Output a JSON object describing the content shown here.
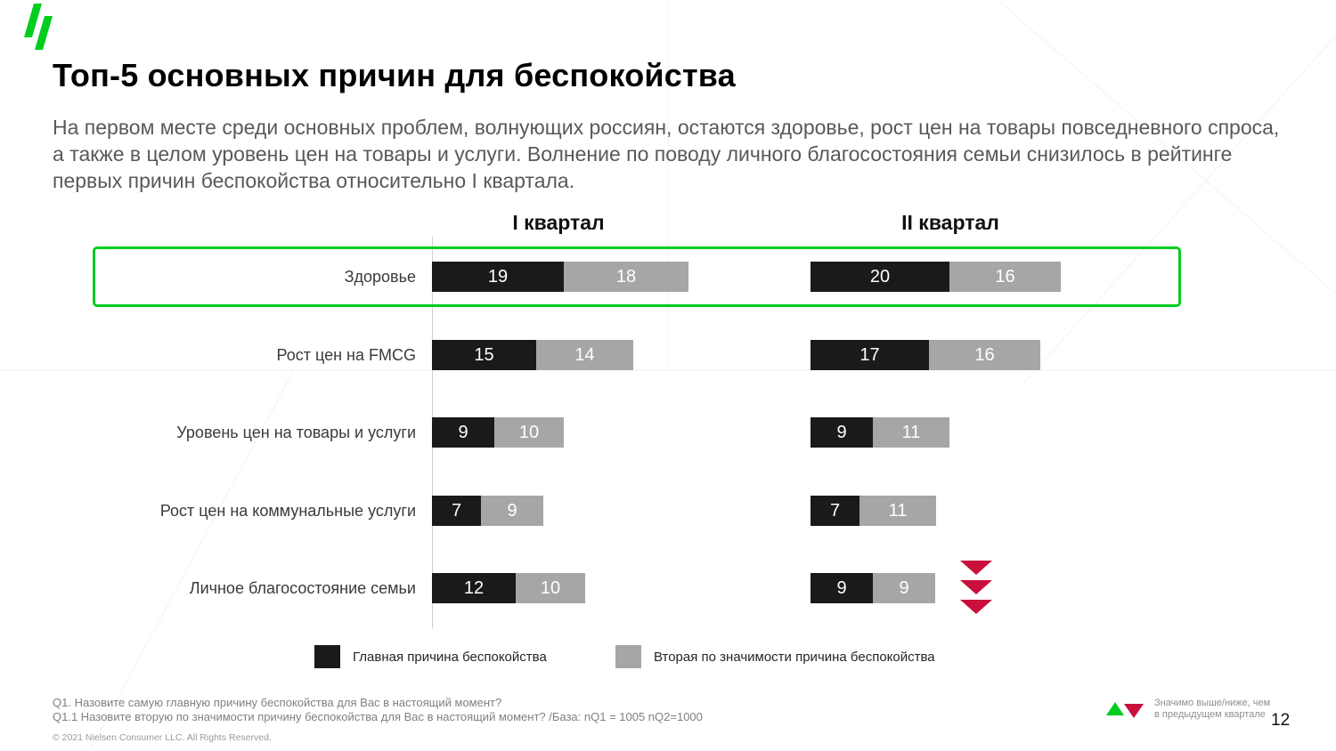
{
  "slide": {
    "title": "Топ-5 основных причин для беспокойства",
    "subtitle": "На первом месте среди основных проблем, волнующих россиян, остаются здоровье, рост цен на товары повседневного спроса, а также в целом уровень цен на товары и услуги. Волнение по поводу личного благосостояния семьи снизилось в рейтинге первых причин беспокойства относительно I квартала."
  },
  "chart_data": {
    "type": "bar",
    "orientation": "horizontal",
    "title": "Топ-5 основных причин для беспокойства",
    "group_headers": [
      "I квартал",
      "II квартал"
    ],
    "categories": [
      "Здоровье",
      "Рост цен на FMCG",
      "Уровень цен на товары и услуги",
      "Рост цен на коммунальные услуги",
      "Личное благосостояние семьи"
    ],
    "series": [
      {
        "name": "Главная причина беспокойства",
        "quarter": "I квартал",
        "values": [
          19,
          15,
          9,
          7,
          12
        ]
      },
      {
        "name": "Вторая по значимости причина беспокойства",
        "quarter": "I квартал",
        "values": [
          18,
          14,
          10,
          9,
          10
        ]
      },
      {
        "name": "Главная причина беспокойства",
        "quarter": "II квартал",
        "values": [
          20,
          17,
          9,
          7,
          9
        ]
      },
      {
        "name": "Вторая по значимости причина беспокойства",
        "quarter": "II квартал",
        "values": [
          16,
          16,
          11,
          11,
          9
        ]
      }
    ],
    "value_labels": true,
    "xlim": [
      0,
      40
    ],
    "highlight_row": {
      "category": "Здоровье",
      "border_color": "#00cd1e"
    },
    "significance_marker": {
      "category": "Личное благосостояние семьи",
      "quarter": "II квартал",
      "direction": "down",
      "count": 3,
      "color": "#c90f3c"
    },
    "colors": {
      "primary_bar": "#1a1a1a",
      "secondary_bar": "#a6a6a6"
    }
  },
  "legend": {
    "items": [
      {
        "label": "Главная причина беспокойства",
        "color": "#1a1a1a"
      },
      {
        "label": "Вторая по значимости причина беспокойства",
        "color": "#a6a6a6"
      }
    ]
  },
  "footer": {
    "line1": "Q1. Назовите самую главную причину беспокойства для  Вас в настоящий момент?",
    "line2": "Q1.1 Назовите вторую по значимости причину беспокойства для  Вас в настоящий момент? /База: nQ1 = 1005 nQ2=1000",
    "copyright": "© 2021 Nielsen Consumer LLC. All Rights Reserved."
  },
  "significance_legend": {
    "up_color": "#00cd1e",
    "down_color": "#c90f3c",
    "line1": "Значимо выше/ниже, чем",
    "line2": "в предыдущем квартале"
  },
  "page_number": "12",
  "brand": {
    "logo_color": "#00cd1e"
  }
}
